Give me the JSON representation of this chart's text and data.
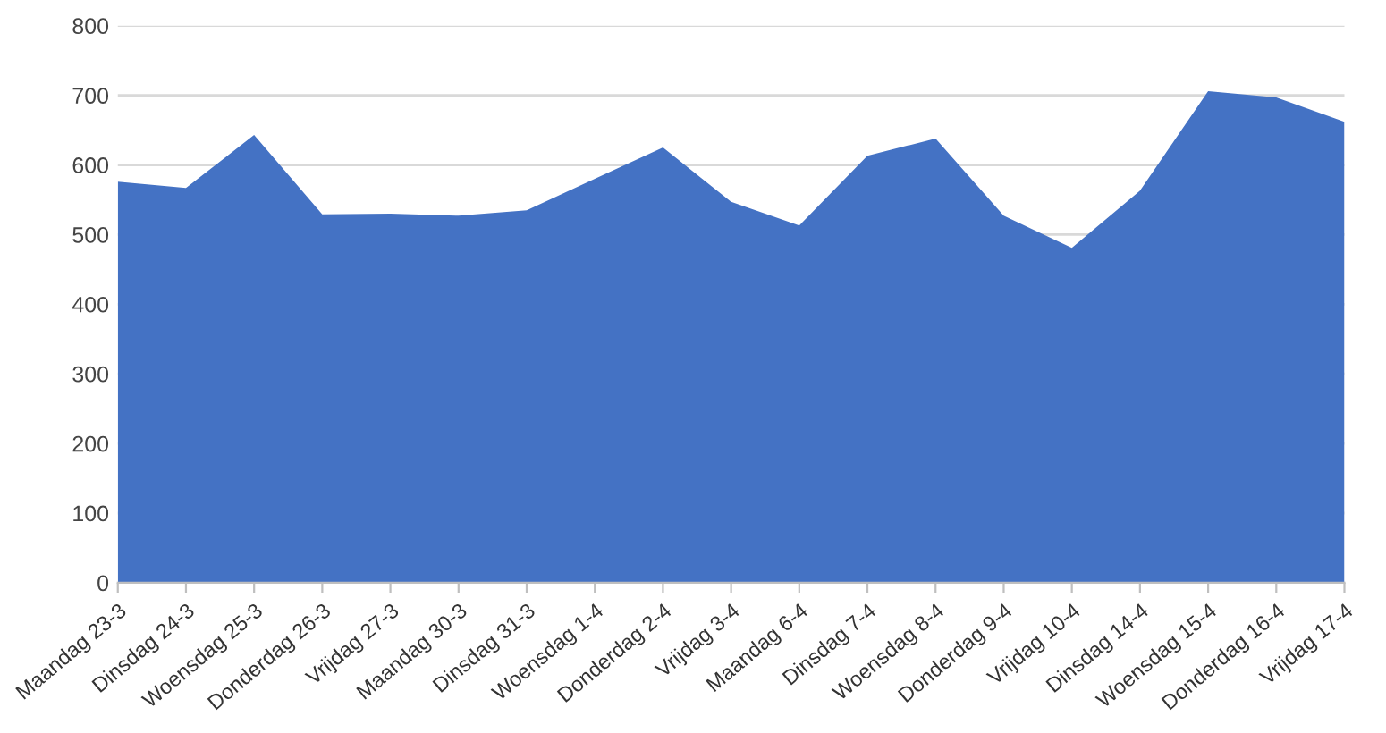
{
  "chart_data": {
    "type": "area",
    "categories": [
      "Maandag 23-3",
      "Dinsdag 24-3",
      "Woensdag 25-3",
      "Donderdag 26-3",
      "Vrijdag 27-3",
      "Maandag 30-3",
      "Dinsdag 31-3",
      "Woensdag 1-4",
      "Donderdag 2-4",
      "Vrijdag 3-4",
      "Maandag 6-4",
      "Dinsdag 7-4",
      "Woensdag 8-4",
      "Donderdag 9-4",
      "Vrijdag 10-4",
      "Dinsdag 14-4",
      "Woensdag 15-4",
      "Donderdag 16-4",
      "Vrijdag 17-4"
    ],
    "values": [
      576,
      567,
      643,
      529,
      530,
      527,
      535,
      580,
      625,
      547,
      513,
      613,
      638,
      527,
      481,
      563,
      706,
      697,
      662
    ],
    "color": "#4472c4",
    "ylim": [
      0,
      800
    ],
    "yticks": [
      0,
      100,
      200,
      300,
      400,
      500,
      600,
      700,
      800
    ],
    "grid": "y"
  }
}
